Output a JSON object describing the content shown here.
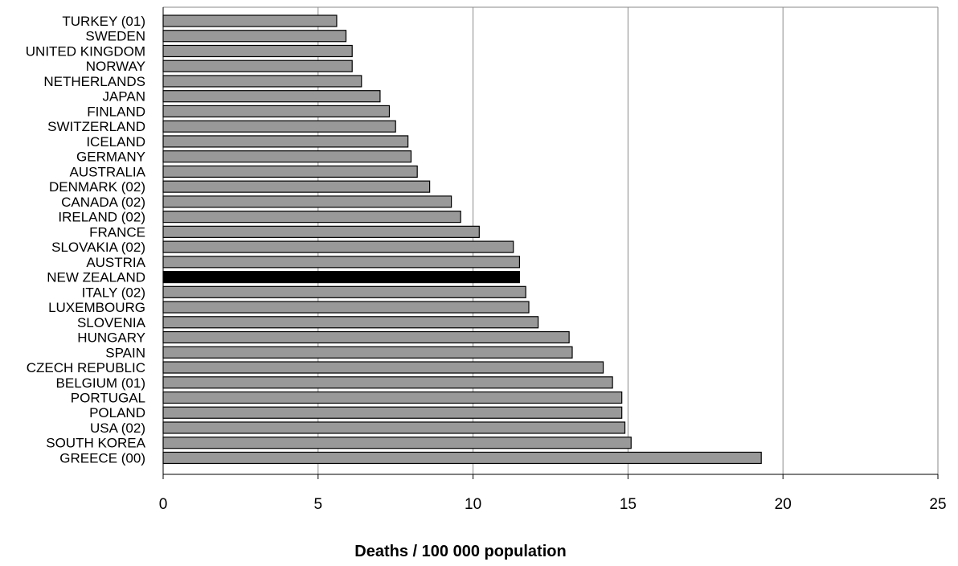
{
  "chart_data": {
    "type": "bar",
    "orientation": "horizontal",
    "title": "",
    "xlabel": "Deaths / 100 000 population",
    "ylabel": "",
    "xlim": [
      0,
      25
    ],
    "xticks": [
      0,
      5,
      10,
      15,
      20,
      25
    ],
    "grid": "vertical gridlines at 10, 15, 20",
    "legend": "none",
    "bar_color": "#999999",
    "highlight_color": "#000000",
    "highlight_category": "NEW ZEALAND",
    "categories": [
      "TURKEY (01)",
      "SWEDEN",
      "UNITED KINGDOM",
      "NORWAY",
      "NETHERLANDS",
      "JAPAN",
      "FINLAND",
      "SWITZERLAND",
      "ICELAND",
      "GERMANY",
      "AUSTRALIA",
      "DENMARK (02)",
      "CANADA (02)",
      "IRELAND (02)",
      "FRANCE",
      "SLOVAKIA (02)",
      "AUSTRIA",
      "NEW ZEALAND",
      "ITALY (02)",
      "LUXEMBOURG",
      "SLOVENIA",
      "HUNGARY",
      "SPAIN",
      "CZECH REPUBLIC",
      "BELGIUM (01)",
      "PORTUGAL",
      "POLAND",
      "USA (02)",
      "SOUTH KOREA",
      "GREECE (00)"
    ],
    "values": [
      5.6,
      5.9,
      6.1,
      6.1,
      6.4,
      7.0,
      7.3,
      7.5,
      7.9,
      8.0,
      8.2,
      8.6,
      9.3,
      9.6,
      10.2,
      11.3,
      11.5,
      11.5,
      11.7,
      11.8,
      12.1,
      13.1,
      13.2,
      14.2,
      14.5,
      14.8,
      14.8,
      14.9,
      15.1,
      19.3
    ]
  }
}
